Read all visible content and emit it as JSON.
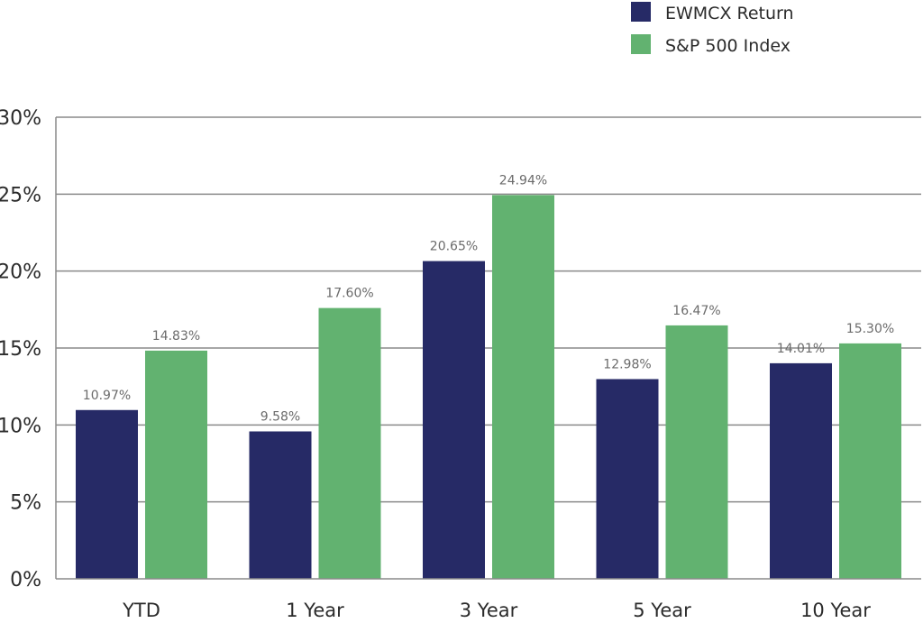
{
  "chart_data": {
    "type": "bar",
    "categories": [
      "YTD",
      "1 Year",
      "3 Year",
      "5 Year",
      "10 Year"
    ],
    "series": [
      {
        "name": "EWMCX Return",
        "color": "#262a66",
        "values": [
          10.97,
          9.58,
          20.65,
          12.98,
          14.01
        ],
        "labels": [
          "10.97%",
          "9.58%",
          "20.65%",
          "12.98%",
          "14.01%"
        ]
      },
      {
        "name": "S&P 500 Index",
        "color": "#62b270",
        "values": [
          14.83,
          17.6,
          24.94,
          16.47,
          15.3
        ],
        "labels": [
          "14.83%",
          "17.60%",
          "24.94%",
          "16.47%",
          "15.30%"
        ]
      }
    ],
    "yticks": [
      0,
      5,
      10,
      15,
      20,
      25,
      30
    ],
    "ytick_labels": [
      "0%",
      "5%",
      "10%",
      "15%",
      "20%",
      "25%",
      "30%"
    ],
    "ylim": [
      0,
      30
    ],
    "grid": true,
    "legend_position": "top-right",
    "title": "",
    "xlabel": "",
    "ylabel": ""
  }
}
